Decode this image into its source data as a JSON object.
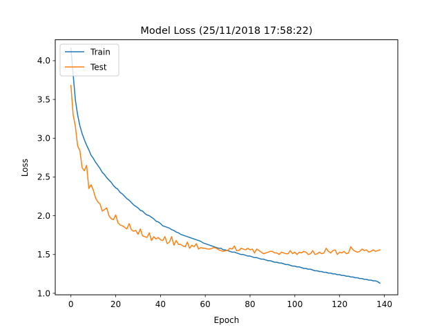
{
  "chart_data": {
    "type": "line",
    "title": "Model Loss (25/11/2018 17:58:22)",
    "xlabel": "Epoch",
    "ylabel": "Loss",
    "xlim": [
      -7,
      146
    ],
    "ylim": [
      0.98,
      4.27
    ],
    "xticks": [
      0,
      20,
      40,
      60,
      80,
      100,
      120,
      140
    ],
    "xtick_labels": [
      "0",
      "20",
      "40",
      "60",
      "80",
      "100",
      "120",
      "140"
    ],
    "yticks": [
      1.0,
      1.5,
      2.0,
      2.5,
      3.0,
      3.5,
      4.0
    ],
    "ytick_labels": [
      "1.0",
      "1.5",
      "2.0",
      "2.5",
      "3.0",
      "3.5",
      "4.0"
    ],
    "grid": false,
    "legend_position": "upper-left",
    "series": [
      {
        "name": "Train",
        "color": "#1f77b4",
        "x": [
          0,
          1,
          2,
          3,
          4,
          5,
          6,
          7,
          8,
          9,
          10,
          11,
          12,
          13,
          14,
          15,
          16,
          17,
          18,
          19,
          20,
          21,
          22,
          23,
          24,
          25,
          26,
          27,
          28,
          29,
          30,
          31,
          32,
          33,
          34,
          35,
          36,
          37,
          38,
          39,
          40,
          41,
          42,
          43,
          44,
          45,
          46,
          47,
          48,
          49,
          50,
          51,
          52,
          53,
          54,
          55,
          56,
          57,
          58,
          59,
          60,
          61,
          62,
          63,
          64,
          65,
          66,
          67,
          68,
          69,
          70,
          71,
          72,
          73,
          74,
          75,
          76,
          77,
          78,
          79,
          80,
          81,
          82,
          83,
          84,
          85,
          86,
          87,
          88,
          89,
          90,
          91,
          92,
          93,
          94,
          95,
          96,
          97,
          98,
          99,
          100,
          101,
          102,
          103,
          104,
          105,
          106,
          107,
          108,
          109,
          110,
          111,
          112,
          113,
          114,
          115,
          116,
          117,
          118,
          119,
          120,
          121,
          122,
          123,
          124,
          125,
          126,
          127,
          128,
          129,
          130,
          131,
          132,
          133,
          134,
          135,
          136,
          137,
          138
        ],
        "y": [
          4.16,
          3.82,
          3.49,
          3.3,
          3.16,
          3.06,
          2.98,
          2.91,
          2.85,
          2.78,
          2.74,
          2.69,
          2.65,
          2.61,
          2.56,
          2.53,
          2.49,
          2.46,
          2.43,
          2.39,
          2.36,
          2.34,
          2.3,
          2.28,
          2.25,
          2.22,
          2.2,
          2.17,
          2.14,
          2.12,
          2.1,
          2.07,
          2.06,
          2.03,
          2.01,
          2.0,
          1.98,
          1.96,
          1.93,
          1.92,
          1.9,
          1.87,
          1.86,
          1.85,
          1.84,
          1.82,
          1.81,
          1.79,
          1.78,
          1.76,
          1.75,
          1.74,
          1.73,
          1.72,
          1.71,
          1.7,
          1.69,
          1.68,
          1.67,
          1.65,
          1.64,
          1.63,
          1.62,
          1.61,
          1.6,
          1.59,
          1.58,
          1.58,
          1.56,
          1.56,
          1.55,
          1.54,
          1.53,
          1.53,
          1.52,
          1.51,
          1.5,
          1.5,
          1.49,
          1.48,
          1.48,
          1.47,
          1.46,
          1.46,
          1.45,
          1.44,
          1.44,
          1.43,
          1.42,
          1.42,
          1.41,
          1.4,
          1.4,
          1.39,
          1.39,
          1.38,
          1.37,
          1.37,
          1.36,
          1.35,
          1.35,
          1.34,
          1.34,
          1.33,
          1.32,
          1.32,
          1.31,
          1.31,
          1.3,
          1.29,
          1.29,
          1.28,
          1.28,
          1.27,
          1.27,
          1.26,
          1.26,
          1.25,
          1.25,
          1.24,
          1.24,
          1.23,
          1.23,
          1.22,
          1.22,
          1.21,
          1.21,
          1.2,
          1.2,
          1.19,
          1.19,
          1.18,
          1.18,
          1.17,
          1.17,
          1.16,
          1.16,
          1.15,
          1.13
        ]
      },
      {
        "name": "Test",
        "color": "#ff7f0e",
        "x": [
          0,
          1,
          2,
          3,
          4,
          5,
          6,
          7,
          8,
          9,
          10,
          11,
          12,
          13,
          14,
          15,
          16,
          17,
          18,
          19,
          20,
          21,
          22,
          23,
          24,
          25,
          26,
          27,
          28,
          29,
          30,
          31,
          32,
          33,
          34,
          35,
          36,
          37,
          38,
          39,
          40,
          41,
          42,
          43,
          44,
          45,
          46,
          47,
          48,
          49,
          50,
          51,
          52,
          53,
          54,
          55,
          56,
          57,
          58,
          59,
          60,
          61,
          62,
          63,
          64,
          65,
          66,
          67,
          68,
          69,
          70,
          71,
          72,
          73,
          74,
          75,
          76,
          77,
          78,
          79,
          80,
          81,
          82,
          83,
          84,
          85,
          86,
          87,
          88,
          89,
          90,
          91,
          92,
          93,
          94,
          95,
          96,
          97,
          98,
          99,
          100,
          101,
          102,
          103,
          104,
          105,
          106,
          107,
          108,
          109,
          110,
          111,
          112,
          113,
          114,
          115,
          116,
          117,
          118,
          119,
          120,
          121,
          122,
          123,
          124,
          125,
          126,
          127,
          128,
          129,
          130,
          131,
          132,
          133,
          134,
          135,
          136,
          137,
          138
        ],
        "y": [
          3.68,
          3.3,
          3.15,
          2.9,
          2.84,
          2.62,
          2.58,
          2.65,
          2.35,
          2.4,
          2.33,
          2.23,
          2.18,
          2.15,
          2.06,
          2.08,
          2.1,
          2.0,
          1.96,
          1.95,
          2.01,
          1.91,
          1.88,
          1.87,
          1.85,
          1.83,
          1.9,
          1.82,
          1.8,
          1.81,
          1.76,
          1.83,
          1.74,
          1.73,
          1.72,
          1.78,
          1.68,
          1.73,
          1.7,
          1.72,
          1.69,
          1.68,
          1.73,
          1.64,
          1.66,
          1.73,
          1.62,
          1.68,
          1.63,
          1.63,
          1.61,
          1.6,
          1.66,
          1.58,
          1.62,
          1.6,
          1.64,
          1.57,
          1.59,
          1.58,
          1.58,
          1.57,
          1.57,
          1.58,
          1.59,
          1.58,
          1.56,
          1.55,
          1.54,
          1.55,
          1.55,
          1.58,
          1.57,
          1.61,
          1.55,
          1.55,
          1.58,
          1.57,
          1.56,
          1.58,
          1.56,
          1.57,
          1.52,
          1.57,
          1.55,
          1.53,
          1.51,
          1.52,
          1.53,
          1.54,
          1.54,
          1.52,
          1.52,
          1.5,
          1.53,
          1.52,
          1.51,
          1.51,
          1.55,
          1.51,
          1.53,
          1.5,
          1.53,
          1.52,
          1.54,
          1.53,
          1.5,
          1.51,
          1.55,
          1.5,
          1.51,
          1.53,
          1.51,
          1.52,
          1.58,
          1.54,
          1.52,
          1.55,
          1.56,
          1.5,
          1.53,
          1.52,
          1.54,
          1.51,
          1.52,
          1.6,
          1.56,
          1.54,
          1.53,
          1.54,
          1.57,
          1.55,
          1.56,
          1.53,
          1.54,
          1.56,
          1.54,
          1.55,
          1.56
        ]
      }
    ]
  }
}
